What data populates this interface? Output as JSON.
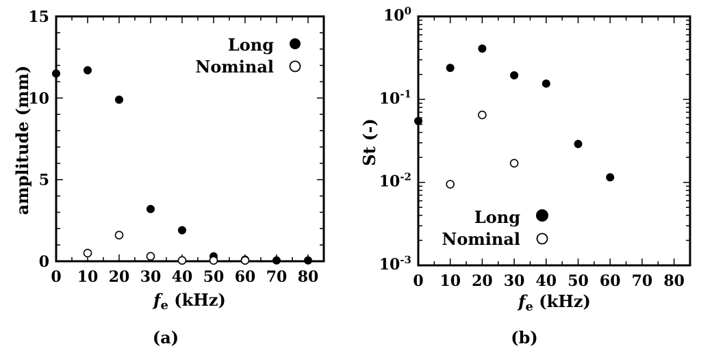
{
  "chart_data": [
    {
      "type": "scatter",
      "panel_label": "(a)",
      "xlabel_main": "f",
      "xlabel_sub": "e",
      "xlabel_unit": " (kHz)",
      "ylabel": "amplitude (mm)",
      "xlim": [
        0,
        85
      ],
      "ylim": [
        0,
        15
      ],
      "yscale": "linear",
      "x_ticks": [
        0,
        10,
        20,
        30,
        40,
        50,
        60,
        70,
        80
      ],
      "x_tick_labels": [
        "0",
        "10",
        "20",
        "30",
        "40",
        "50",
        "60",
        "70",
        "80"
      ],
      "y_ticks": [
        0,
        5,
        10,
        15
      ],
      "y_tick_labels": [
        "0",
        "5",
        "10",
        "15"
      ],
      "legend_position": "top-right",
      "series": [
        {
          "name": "Long",
          "marker": "filled-circle",
          "x": [
            0,
            10,
            20,
            30,
            40,
            50,
            60,
            70,
            80
          ],
          "y": [
            11.5,
            11.7,
            9.9,
            3.2,
            1.9,
            0.3,
            0.1,
            0.05,
            0.05
          ]
        },
        {
          "name": "Nominal",
          "marker": "open-circle",
          "x": [
            10,
            20,
            30,
            40,
            50,
            60
          ],
          "y": [
            0.5,
            1.6,
            0.3,
            0.05,
            0.05,
            0.05
          ]
        }
      ]
    },
    {
      "type": "scatter",
      "panel_label": "(b)",
      "xlabel_main": "f",
      "xlabel_sub": "e",
      "xlabel_unit": " (kHz)",
      "ylabel": "St  (-)",
      "xlim": [
        0,
        85
      ],
      "ylim": [
        0.001,
        1
      ],
      "yscale": "log",
      "x_ticks": [
        0,
        10,
        20,
        30,
        40,
        50,
        60,
        70,
        80
      ],
      "x_tick_labels": [
        "0",
        "10",
        "20",
        "30",
        "40",
        "50",
        "60",
        "70",
        "80"
      ],
      "y_ticks": [
        0.001,
        0.01,
        0.1,
        1
      ],
      "y_tick_bases": [
        "10",
        "10",
        "10",
        "10"
      ],
      "y_tick_exps": [
        "-3",
        "-2",
        "-1",
        "0"
      ],
      "legend_position": "bottom-right",
      "series": [
        {
          "name": "Long",
          "marker": "filled-circle",
          "x": [
            0,
            10,
            20,
            30,
            40,
            50,
            60
          ],
          "y": [
            0.055,
            0.24,
            0.41,
            0.195,
            0.155,
            0.029,
            0.0115
          ]
        },
        {
          "name": "Nominal",
          "marker": "open-circle",
          "x": [
            10,
            20,
            30
          ],
          "y": [
            0.0095,
            0.065,
            0.017
          ]
        }
      ]
    }
  ]
}
